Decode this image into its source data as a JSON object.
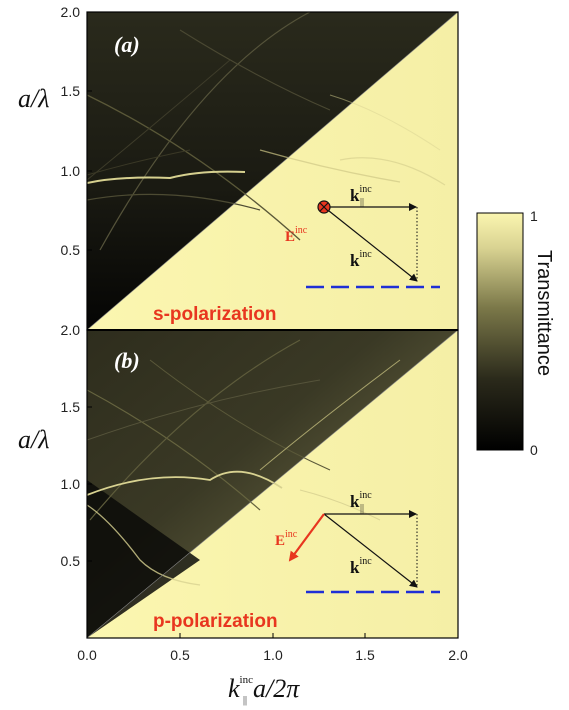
{
  "chart_data": [
    {
      "type": "heatmap",
      "panel_label": "(a)",
      "polarization_label": "s-polarization",
      "xlim": [
        0,
        2.0
      ],
      "ylim": [
        0,
        2.0
      ],
      "y_ticks": [
        "0.5",
        "1.0",
        "1.5",
        "2.0"
      ],
      "ylabel_lhs": "a/",
      "ylabel_sym": "λ",
      "light_line": {
        "x": [
          0,
          2.0
        ],
        "y": [
          0,
          2.0
        ]
      },
      "inset": {
        "k_par": "k",
        "k_par_sub": "||",
        "k_par_sup": "inc",
        "k": "k",
        "k_sup": "inc",
        "E": "E",
        "E_sup": "inc"
      }
    },
    {
      "type": "heatmap",
      "panel_label": "(b)",
      "polarization_label": "p-polarization",
      "xlim": [
        0,
        2.0
      ],
      "ylim": [
        0,
        2.0
      ],
      "y_ticks": [
        "0.5",
        "1.0",
        "1.5",
        "2.0"
      ],
      "ylabel_lhs": "a/",
      "ylabel_sym": "λ",
      "light_line": {
        "x": [
          0,
          2.0
        ],
        "y": [
          0,
          2.0
        ]
      },
      "inset": {
        "k_par": "k",
        "k_par_sub": "||",
        "k_par_sup": "inc",
        "k": "k",
        "k_sup": "inc",
        "E": "E",
        "E_sup": "inc"
      }
    }
  ],
  "x_axis": {
    "ticks": [
      "0.0",
      "0.5",
      "1.0",
      "1.5",
      "2.0"
    ],
    "label_k": "k",
    "label_sub": "||",
    "label_sup": "inc",
    "label_rest": "a/2",
    "label_pi": "π"
  },
  "colorbar": {
    "title": "Transmittance",
    "max_label": "1",
    "min_label": "0",
    "range": [
      0,
      1
    ],
    "color_low": "#000000",
    "color_mid": "#6b6b3a",
    "color_high": "#fbf6b0"
  },
  "colors": {
    "dark_region": "#141410",
    "light_region": "#fbf6b0",
    "label_red": "#e8361f",
    "dash_blue": "#1f2fd6"
  }
}
